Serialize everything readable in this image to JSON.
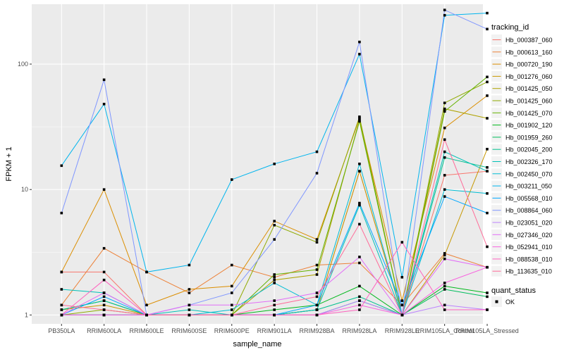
{
  "chart_data": {
    "type": "line",
    "xlabel": "sample_name",
    "ylabel": "FPKM + 1",
    "yscale": "log10",
    "ylim": [
      0.85,
      300
    ],
    "y_ticks": [
      1,
      10,
      100
    ],
    "y_tick_labels": [
      "1",
      "10",
      "100"
    ],
    "categories": [
      "PB350LA",
      "RRIM600LA",
      "RRIM600LE",
      "RRIM600SE",
      "RRIM600PE",
      "RRIM901LA",
      "RRIM928BA",
      "RRIM928LA",
      "RRIM928LE",
      "RRIM105LA_Control",
      "RRIM105LA_Stressed"
    ],
    "category_labels": [
      "PB350LA",
      "RRIM600LA",
      "RRIM600LE",
      "RRIM600SE",
      "RRIM600PE",
      "RRIM901LA",
      "RRIM928BA",
      "RRIM928LA",
      "RRIM928LE",
      "RRIM105LA_Control",
      "RRIM105LA_Stressed"
    ],
    "legend": {
      "title": "tracking_id",
      "position": "right",
      "shape_title": "quant_status",
      "shape_label": "OK"
    },
    "series": [
      {
        "name": "Hb_000387_060",
        "color": "#F8766D",
        "values": [
          2.2,
          2.2,
          1.0,
          1.0,
          1.0,
          1.0,
          1.1,
          14.0,
          1.0,
          13.0,
          14.0
        ]
      },
      {
        "name": "Hb_000613_160",
        "color": "#EC8239",
        "values": [
          1.2,
          3.4,
          2.2,
          1.5,
          2.5,
          2.0,
          2.5,
          2.6,
          1.2,
          3.1,
          2.4
        ]
      },
      {
        "name": "Hb_000720_190",
        "color": "#DB8E00",
        "values": [
          2.2,
          10.0,
          1.2,
          1.6,
          1.7,
          5.6,
          4.0,
          37.0,
          1.3,
          31.0,
          56.0
        ]
      },
      {
        "name": "Hb_001276_060",
        "color": "#C79800",
        "values": [
          1.1,
          1.2,
          1.0,
          1.0,
          1.0,
          1.0,
          1.1,
          14.0,
          1.0,
          3.0,
          21.0
        ]
      },
      {
        "name": "Hb_001425_050",
        "color": "#AEA200",
        "values": [
          1.0,
          1.0,
          1.0,
          1.0,
          1.0,
          1.9,
          2.1,
          36.0,
          1.0,
          44.0,
          37.0
        ]
      },
      {
        "name": "Hb_001425_060",
        "color": "#8FAA00",
        "values": [
          1.0,
          1.1,
          1.0,
          1.0,
          1.0,
          5.2,
          3.8,
          38.0,
          1.0,
          49.0,
          72.0
        ]
      },
      {
        "name": "Hb_001425_070",
        "color": "#64B200",
        "values": [
          1.0,
          1.0,
          1.0,
          1.0,
          1.0,
          2.1,
          2.3,
          35.0,
          1.0,
          42.0,
          79.0
        ]
      },
      {
        "name": "Hb_001902_120",
        "color": "#00B81B",
        "values": [
          1.1,
          1.3,
          1.0,
          1.0,
          1.0,
          1.1,
          1.2,
          1.7,
          1.0,
          1.7,
          1.5
        ]
      },
      {
        "name": "Hb_001959_260",
        "color": "#00BD5C",
        "values": [
          1.0,
          1.0,
          1.0,
          1.0,
          1.0,
          1.0,
          1.0,
          1.3,
          1.0,
          1.6,
          1.4
        ]
      },
      {
        "name": "Hb_002045_200",
        "color": "#00C08E",
        "values": [
          1.1,
          1.3,
          1.0,
          1.0,
          1.0,
          1.0,
          1.1,
          1.4,
          1.0,
          18.0,
          15.0
        ]
      },
      {
        "name": "Hb_002326_170",
        "color": "#00C1B7",
        "values": [
          1.6,
          1.5,
          1.0,
          1.1,
          1.0,
          1.0,
          1.1,
          7.5,
          1.0,
          20.0,
          14.0
        ]
      },
      {
        "name": "Hb_002450_070",
        "color": "#00BDD4",
        "values": [
          1.0,
          1.0,
          1.0,
          1.0,
          1.1,
          1.8,
          1.2,
          16.0,
          1.0,
          10.0,
          9.3
        ]
      },
      {
        "name": "Hb_003211_050",
        "color": "#00B5EE",
        "values": [
          15.5,
          48.0,
          2.2,
          2.5,
          12.0,
          16.0,
          20.0,
          120.0,
          2.0,
          245.0,
          255.0
        ]
      },
      {
        "name": "Hb_005568_010",
        "color": "#00A7FF",
        "values": [
          1.0,
          1.4,
          1.0,
          1.0,
          1.0,
          1.0,
          1.2,
          7.8,
          1.2,
          8.8,
          6.5
        ]
      },
      {
        "name": "Hb_008864_060",
        "color": "#7F96FF",
        "values": [
          6.5,
          75.0,
          1.0,
          1.2,
          1.5,
          4.0,
          13.5,
          150.0,
          1.0,
          270.0,
          190.0
        ]
      },
      {
        "name": "Hb_023051_020",
        "color": "#BC81FF",
        "values": [
          1.0,
          1.0,
          1.0,
          1.0,
          1.0,
          1.0,
          1.0,
          1.3,
          1.0,
          1.2,
          1.1
        ]
      },
      {
        "name": "Hb_027346_020",
        "color": "#E26EF7",
        "values": [
          1.0,
          1.5,
          1.0,
          1.2,
          1.2,
          1.3,
          1.5,
          2.9,
          1.0,
          2.8,
          2.4
        ]
      },
      {
        "name": "Hb_052941_010",
        "color": "#F863DF",
        "values": [
          1.0,
          1.0,
          1.0,
          1.0,
          1.0,
          1.0,
          1.0,
          1.2,
          1.0,
          1.8,
          2.4
        ]
      },
      {
        "name": "Hb_088538_010",
        "color": "#FF62BF",
        "values": [
          1.0,
          1.9,
          1.0,
          1.0,
          1.0,
          1.0,
          1.0,
          1.1,
          3.8,
          1.1,
          1.1
        ]
      },
      {
        "name": "Hb_113635_010",
        "color": "#FF6A98",
        "values": [
          1.2,
          1.1,
          1.0,
          1.0,
          1.0,
          1.2,
          1.4,
          5.3,
          1.0,
          25.0,
          3.5
        ]
      }
    ]
  }
}
